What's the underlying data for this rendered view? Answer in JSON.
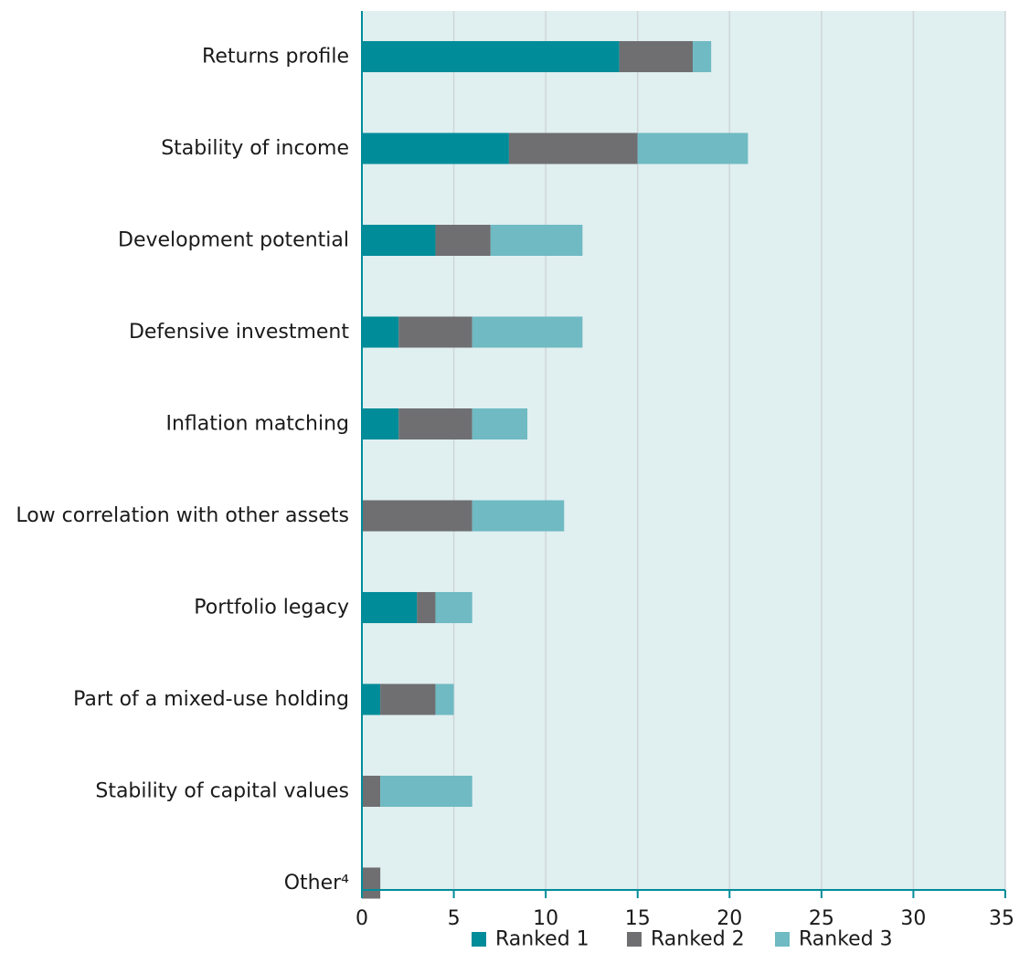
{
  "chart_data": {
    "type": "bar",
    "orientation": "horizontal",
    "stacked": true,
    "categories": [
      "Returns profile",
      "Stability of income",
      "Development potential",
      "Defensive investment",
      "Inflation matching",
      "Low correlation with other assets",
      "Portfolio legacy",
      "Part of a mixed-use holding",
      "Stability of capital values",
      "Other⁴"
    ],
    "series": [
      {
        "name": "Ranked 1",
        "color": "#008c99",
        "values": [
          14,
          8,
          4,
          2,
          2,
          0,
          3,
          1,
          0,
          0
        ]
      },
      {
        "name": "Ranked 2",
        "color": "#6f6f72",
        "values": [
          4,
          7,
          3,
          4,
          4,
          6,
          1,
          3,
          1,
          1
        ]
      },
      {
        "name": "Ranked 3",
        "color": "#6fbac3",
        "values": [
          1,
          6,
          5,
          6,
          3,
          5,
          2,
          1,
          5,
          0
        ]
      }
    ],
    "xlim": [
      0,
      35
    ],
    "xticks": [
      0,
      5,
      10,
      15,
      20,
      25,
      30,
      35
    ],
    "xtick_labels": [
      "0",
      "5",
      "10",
      "15",
      "20",
      "25",
      "30",
      "35"
    ],
    "grid": true,
    "legend_position": "bottom",
    "title": "",
    "xlabel": "",
    "ylabel": "",
    "colors": {
      "plot_background": "#e0eff0",
      "axis": "#008c99",
      "grid": "#d0d6d8"
    }
  }
}
